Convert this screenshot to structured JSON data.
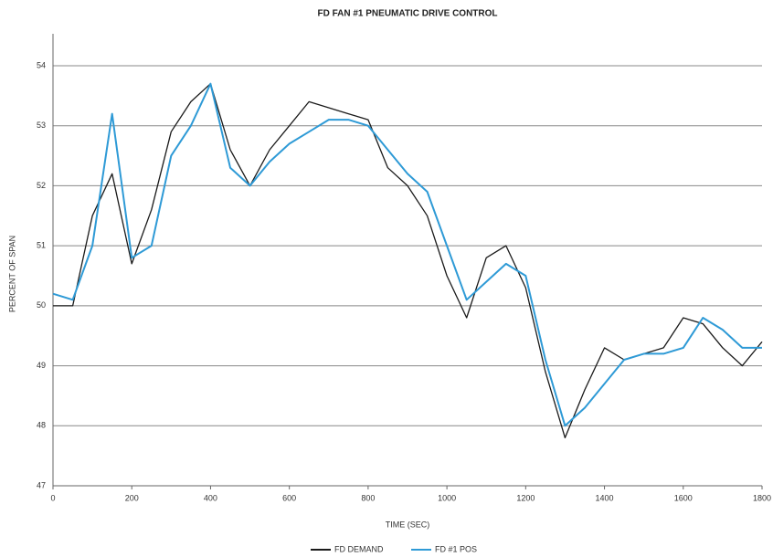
{
  "chart_data": {
    "type": "line",
    "title": "FD FAN #1 PNEUMATIC DRIVE CONTROL",
    "x_label": "TIME (SEC)",
    "y_label": "PERCENT OF SPAN",
    "x": [
      0,
      50,
      100,
      150,
      200,
      250,
      300,
      350,
      400,
      450,
      500,
      550,
      600,
      650,
      700,
      750,
      800,
      850,
      900,
      950,
      1000,
      1050,
      1100,
      1150,
      1200,
      1250,
      1300,
      1350,
      1400,
      1450,
      1500,
      1550,
      1600,
      1650,
      1700,
      1750,
      1800
    ],
    "series": [
      {
        "name": "FD DEMAND",
        "color": "#1a1a1a",
        "values": [
          50.0,
          50.0,
          51.5,
          52.2,
          50.7,
          51.6,
          52.9,
          53.4,
          53.7,
          52.6,
          52.0,
          52.6,
          53.0,
          53.4,
          53.3,
          53.2,
          53.1,
          52.3,
          52.0,
          51.5,
          50.5,
          49.8,
          50.8,
          51.0,
          50.3,
          48.9,
          47.8,
          48.6,
          49.3,
          49.1,
          49.2,
          49.3,
          49.8,
          49.7,
          49.3,
          49.0,
          49.4
        ]
      },
      {
        "name": "FD #1 POS",
        "color": "#2e9ad6",
        "values": [
          50.2,
          50.1,
          51.0,
          53.2,
          50.8,
          51.0,
          52.5,
          53.0,
          53.7,
          52.3,
          52.0,
          52.4,
          52.7,
          52.9,
          53.1,
          53.1,
          53.0,
          52.6,
          52.2,
          51.9,
          51.0,
          50.1,
          50.4,
          50.7,
          50.5,
          49.1,
          48.0,
          48.3,
          48.7,
          49.1,
          49.2,
          49.2,
          49.3,
          49.8,
          49.6,
          49.3,
          49.3
        ]
      }
    ],
    "xlim": [
      0,
      1800
    ],
    "xticks": [
      0,
      200,
      400,
      600,
      800,
      1000,
      1200,
      1400,
      1600,
      1800
    ],
    "ylim": [
      47,
      54
    ],
    "yticks": [
      47,
      48,
      49,
      50,
      51,
      52,
      53,
      54
    ],
    "grid": true,
    "legend": "bottom"
  }
}
